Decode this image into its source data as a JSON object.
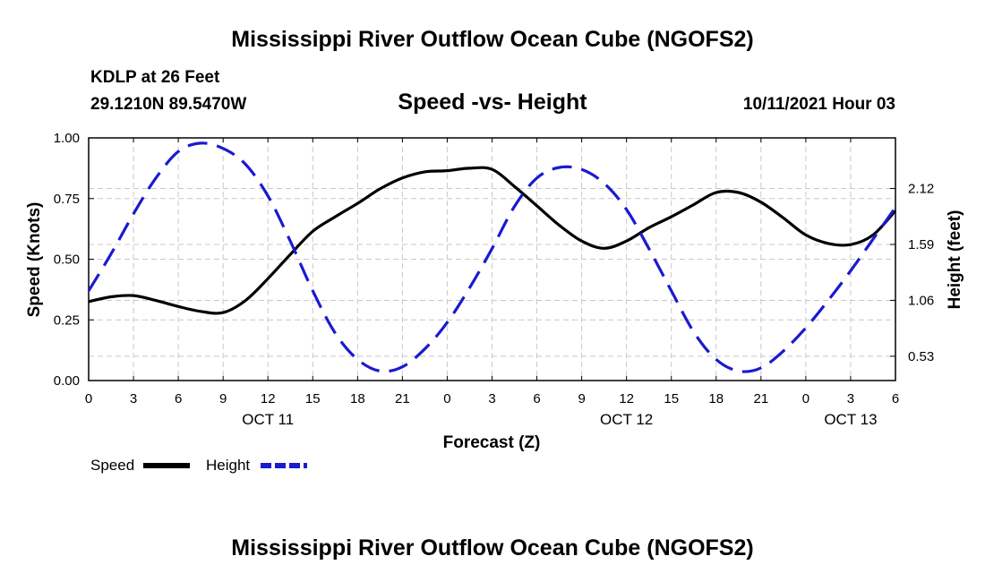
{
  "header": {
    "title": "Mississippi River Outflow Ocean Cube (NGOFS2)",
    "station": "KDLP at 26 Feet",
    "coordinates": "29.1210N  89.5470W",
    "subtitle": "Speed -vs- Height",
    "datetime": "10/11/2021 Hour 03"
  },
  "footer": {
    "title": "Mississippi River Outflow Ocean Cube (NGOFS2)"
  },
  "colors": {
    "speed": "#000000",
    "height": "#1a1ad0",
    "grid": "#c8c8c8"
  },
  "chart_data": {
    "type": "line",
    "title": "Speed -vs- Height",
    "xlabel": "Forecast (Z)",
    "ylabel": "Speed (Knots)",
    "y2label": "Height (feet)",
    "x_hours_range": [
      0,
      54
    ],
    "x_tick_labels": [
      "0",
      "3",
      "6",
      "9",
      "12",
      "15",
      "18",
      "21",
      "0",
      "3",
      "6",
      "9",
      "12",
      "15",
      "18",
      "21",
      "0",
      "3",
      "6"
    ],
    "date_labels": [
      {
        "label": "OCT 11",
        "hour": 12
      },
      {
        "label": "OCT 12",
        "hour": 36
      },
      {
        "label": "OCT 13",
        "hour": 51
      }
    ],
    "ylim": [
      0,
      1
    ],
    "yticks": [
      "0.00",
      "0.25",
      "0.50",
      "0.75",
      "1.00"
    ],
    "y2lim": [
      0.3,
      2.6
    ],
    "y2ticks": [
      "0.53",
      "1.06",
      "1.59",
      "2.12"
    ],
    "legend": [
      {
        "name": "Speed",
        "style": "solid"
      },
      {
        "name": "Height",
        "style": "dashed"
      }
    ],
    "series": [
      {
        "name": "Speed",
        "axis": "left",
        "x": [
          0,
          1.5,
          3,
          4.5,
          6,
          7.5,
          9,
          10.5,
          12,
          13.5,
          15,
          16.5,
          18,
          19.5,
          21,
          22.5,
          24,
          25.5,
          27,
          28.5,
          30,
          31.5,
          33,
          34.5,
          36,
          37.5,
          39,
          40.5,
          42,
          43.5,
          45,
          46.5,
          48,
          49.5,
          51,
          52.5,
          54
        ],
        "values": [
          0.325,
          0.345,
          0.35,
          0.33,
          0.305,
          0.285,
          0.28,
          0.33,
          0.42,
          0.52,
          0.615,
          0.675,
          0.73,
          0.79,
          0.835,
          0.86,
          0.865,
          0.875,
          0.87,
          0.8,
          0.72,
          0.64,
          0.575,
          0.545,
          0.575,
          0.63,
          0.675,
          0.725,
          0.775,
          0.775,
          0.735,
          0.67,
          0.6,
          0.565,
          0.56,
          0.6,
          0.7
        ]
      },
      {
        "name": "Height",
        "axis": "right",
        "x": [
          0,
          1.5,
          3,
          4.5,
          6,
          7.5,
          9,
          10.5,
          12,
          13.5,
          15,
          16.5,
          18,
          19.5,
          21,
          22.5,
          24,
          25.5,
          27,
          28.5,
          30,
          31.5,
          33,
          34.5,
          36,
          37.5,
          39,
          40.5,
          42,
          43.5,
          45,
          46.5,
          48,
          49.5,
          51,
          52.5,
          54
        ],
        "values": [
          1.15,
          1.5,
          1.88,
          2.22,
          2.47,
          2.55,
          2.5,
          2.35,
          2.05,
          1.62,
          1.15,
          0.75,
          0.5,
          0.39,
          0.43,
          0.6,
          0.85,
          1.18,
          1.55,
          1.95,
          2.22,
          2.32,
          2.3,
          2.17,
          1.92,
          1.55,
          1.15,
          0.76,
          0.5,
          0.39,
          0.42,
          0.58,
          0.8,
          1.06,
          1.34,
          1.64,
          1.94
        ]
      }
    ]
  }
}
